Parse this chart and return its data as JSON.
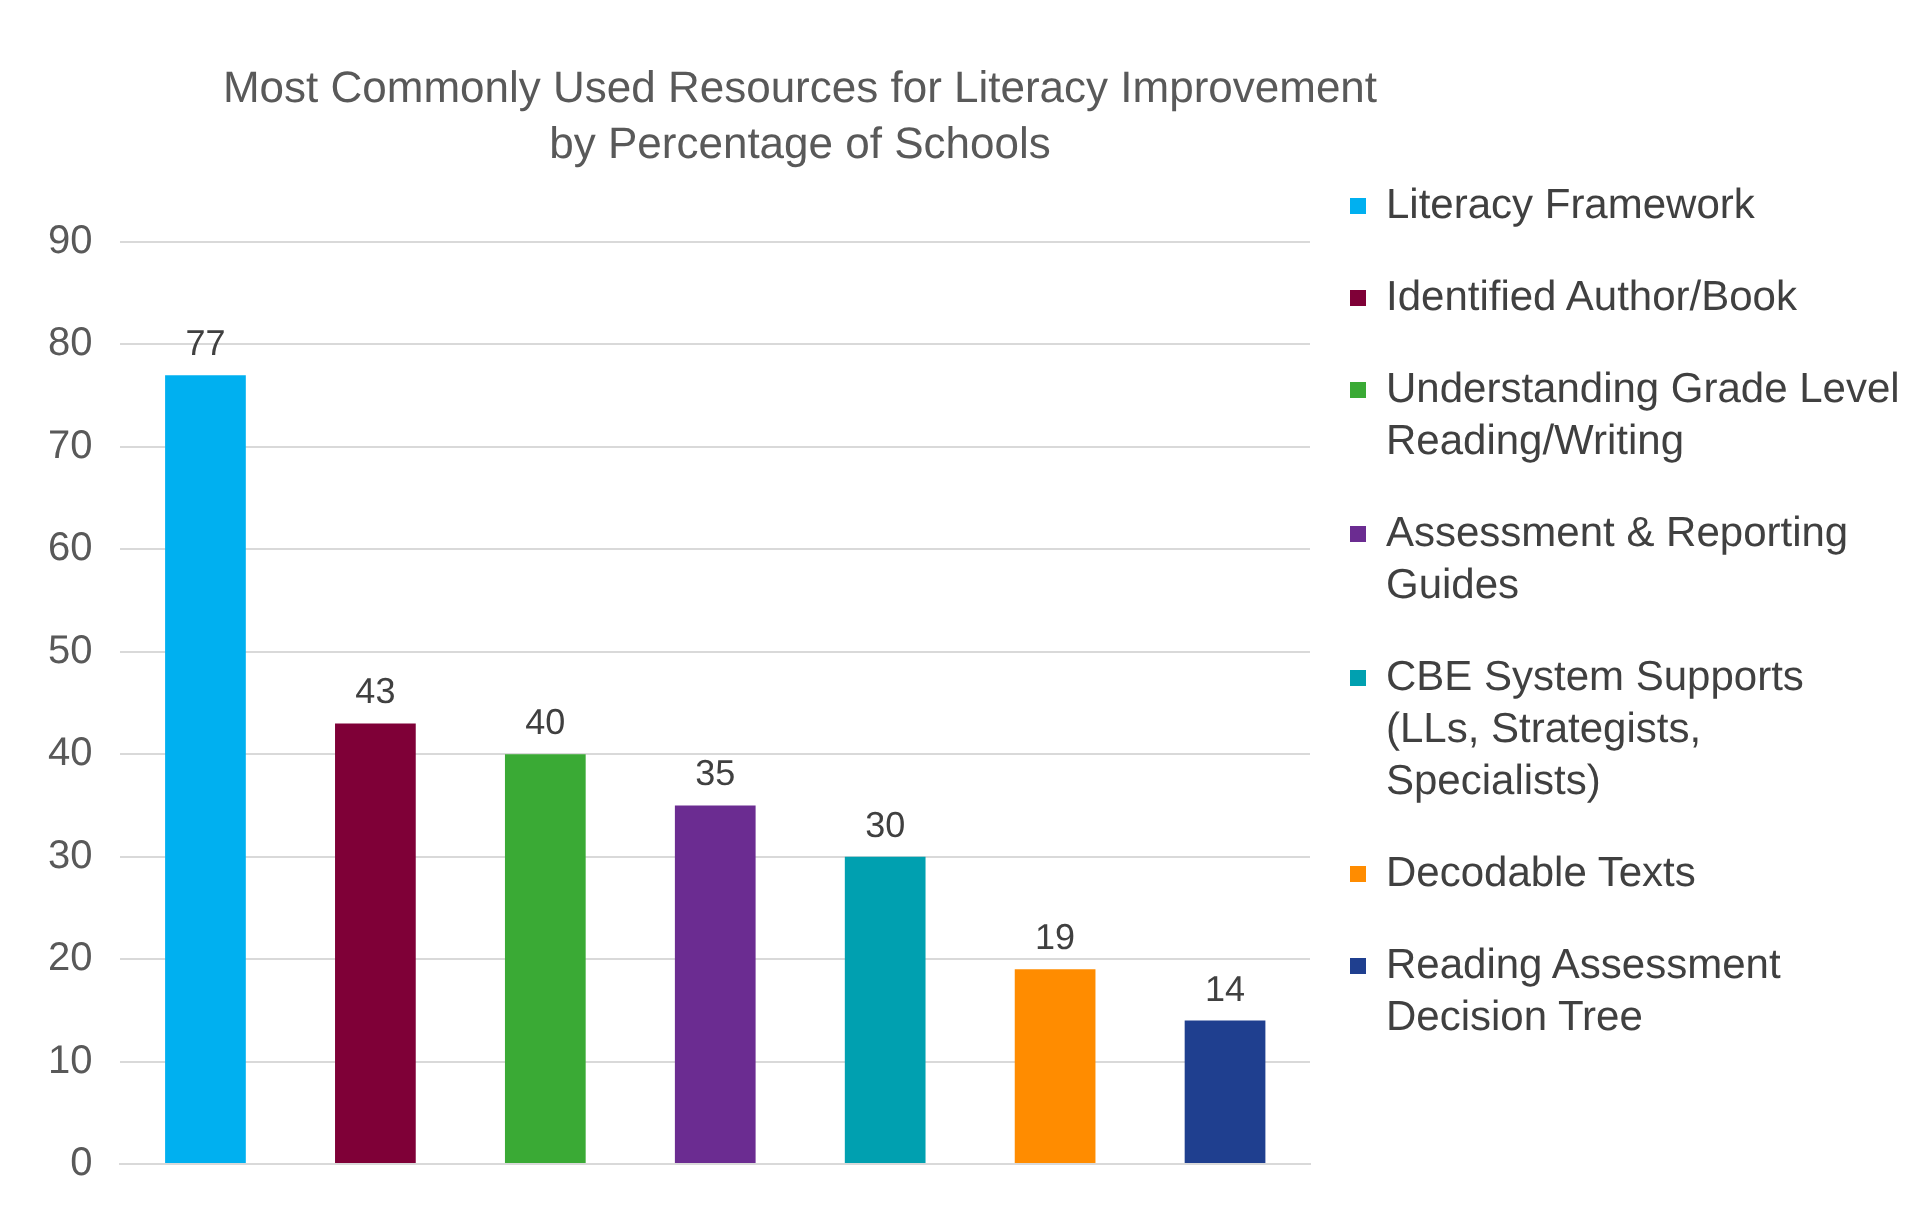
{
  "chart_data": {
    "type": "bar",
    "title": "Most Commonly Used Resources for Literacy Improvement by Percentage of Schools",
    "categories": [
      null,
      null,
      null,
      null,
      null,
      null,
      null
    ],
    "series": [
      {
        "name": "Literacy Framework",
        "color": "#00b0f0",
        "values": [
          77,
          null,
          null,
          null,
          null,
          null,
          null
        ]
      },
      {
        "name": "Identified Author/Book",
        "color": "#7f0037",
        "values": [
          null,
          43,
          null,
          null,
          null,
          null,
          null
        ]
      },
      {
        "name": "Understanding Grade Level Reading/Writing",
        "color": "#3aaa35",
        "values": [
          null,
          null,
          40,
          null,
          null,
          null,
          null
        ]
      },
      {
        "name": "Assessment & Reporting Guides",
        "color": "#6b2c91",
        "values": [
          null,
          null,
          null,
          35,
          null,
          null,
          null
        ]
      },
      {
        "name": "CBE System Supports (LLs, Strategists, Specialists)",
        "color": "#00a0b0",
        "values": [
          null,
          null,
          null,
          null,
          30,
          null,
          null
        ]
      },
      {
        "name": "Decodable Texts",
        "color": "#ff8c00",
        "values": [
          null,
          null,
          null,
          null,
          null,
          19,
          null
        ]
      },
      {
        "name": "Reading Assessment Decision Tree",
        "color": "#1f3f8f",
        "values": [
          null,
          null,
          null,
          null,
          null,
          null,
          14
        ]
      }
    ],
    "ylim": [
      0,
      90
    ],
    "yticks": [
      0,
      10,
      20,
      30,
      40,
      50,
      60,
      70,
      80,
      90
    ],
    "grid": "y",
    "legend": "right",
    "data_labels": true
  }
}
